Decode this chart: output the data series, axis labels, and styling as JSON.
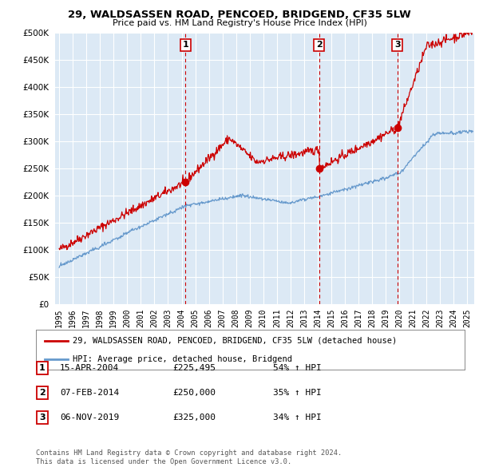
{
  "title1": "29, WALDSASSEN ROAD, PENCOED, BRIDGEND, CF35 5LW",
  "title2": "Price paid vs. HM Land Registry's House Price Index (HPI)",
  "transactions": [
    {
      "num": 1,
      "x_year": 2004.29,
      "price": 225495
    },
    {
      "num": 2,
      "x_year": 2014.1,
      "price": 250000
    },
    {
      "num": 3,
      "x_year": 2019.85,
      "price": 325000
    }
  ],
  "table_rows": [
    {
      "num": 1,
      "date": "15-APR-2004",
      "price": "£225,495",
      "pct": "54% ↑ HPI"
    },
    {
      "num": 2,
      "date": "07-FEB-2014",
      "price": "£250,000",
      "pct": "35% ↑ HPI"
    },
    {
      "num": 3,
      "date": "06-NOV-2019",
      "price": "£325,000",
      "pct": "34% ↑ HPI"
    }
  ],
  "red_label": "29, WALDSASSEN ROAD, PENCOED, BRIDGEND, CF35 5LW (detached house)",
  "blue_label": "HPI: Average price, detached house, Bridgend",
  "footer1": "Contains HM Land Registry data © Crown copyright and database right 2024.",
  "footer2": "This data is licensed under the Open Government Licence v3.0.",
  "ylim": [
    0,
    500000
  ],
  "yticks": [
    0,
    50000,
    100000,
    150000,
    200000,
    250000,
    300000,
    350000,
    400000,
    450000,
    500000
  ],
  "xlim_start": 1994.7,
  "xlim_end": 2025.5,
  "xticks": [
    1995,
    1996,
    1997,
    1998,
    1999,
    2000,
    2001,
    2002,
    2003,
    2004,
    2005,
    2006,
    2007,
    2008,
    2009,
    2010,
    2011,
    2012,
    2013,
    2014,
    2015,
    2016,
    2017,
    2018,
    2019,
    2020,
    2021,
    2022,
    2023,
    2024,
    2025
  ],
  "plot_bg": "#dce9f5",
  "grid_color": "#ffffff",
  "red_color": "#cc0000",
  "blue_color": "#6699cc"
}
